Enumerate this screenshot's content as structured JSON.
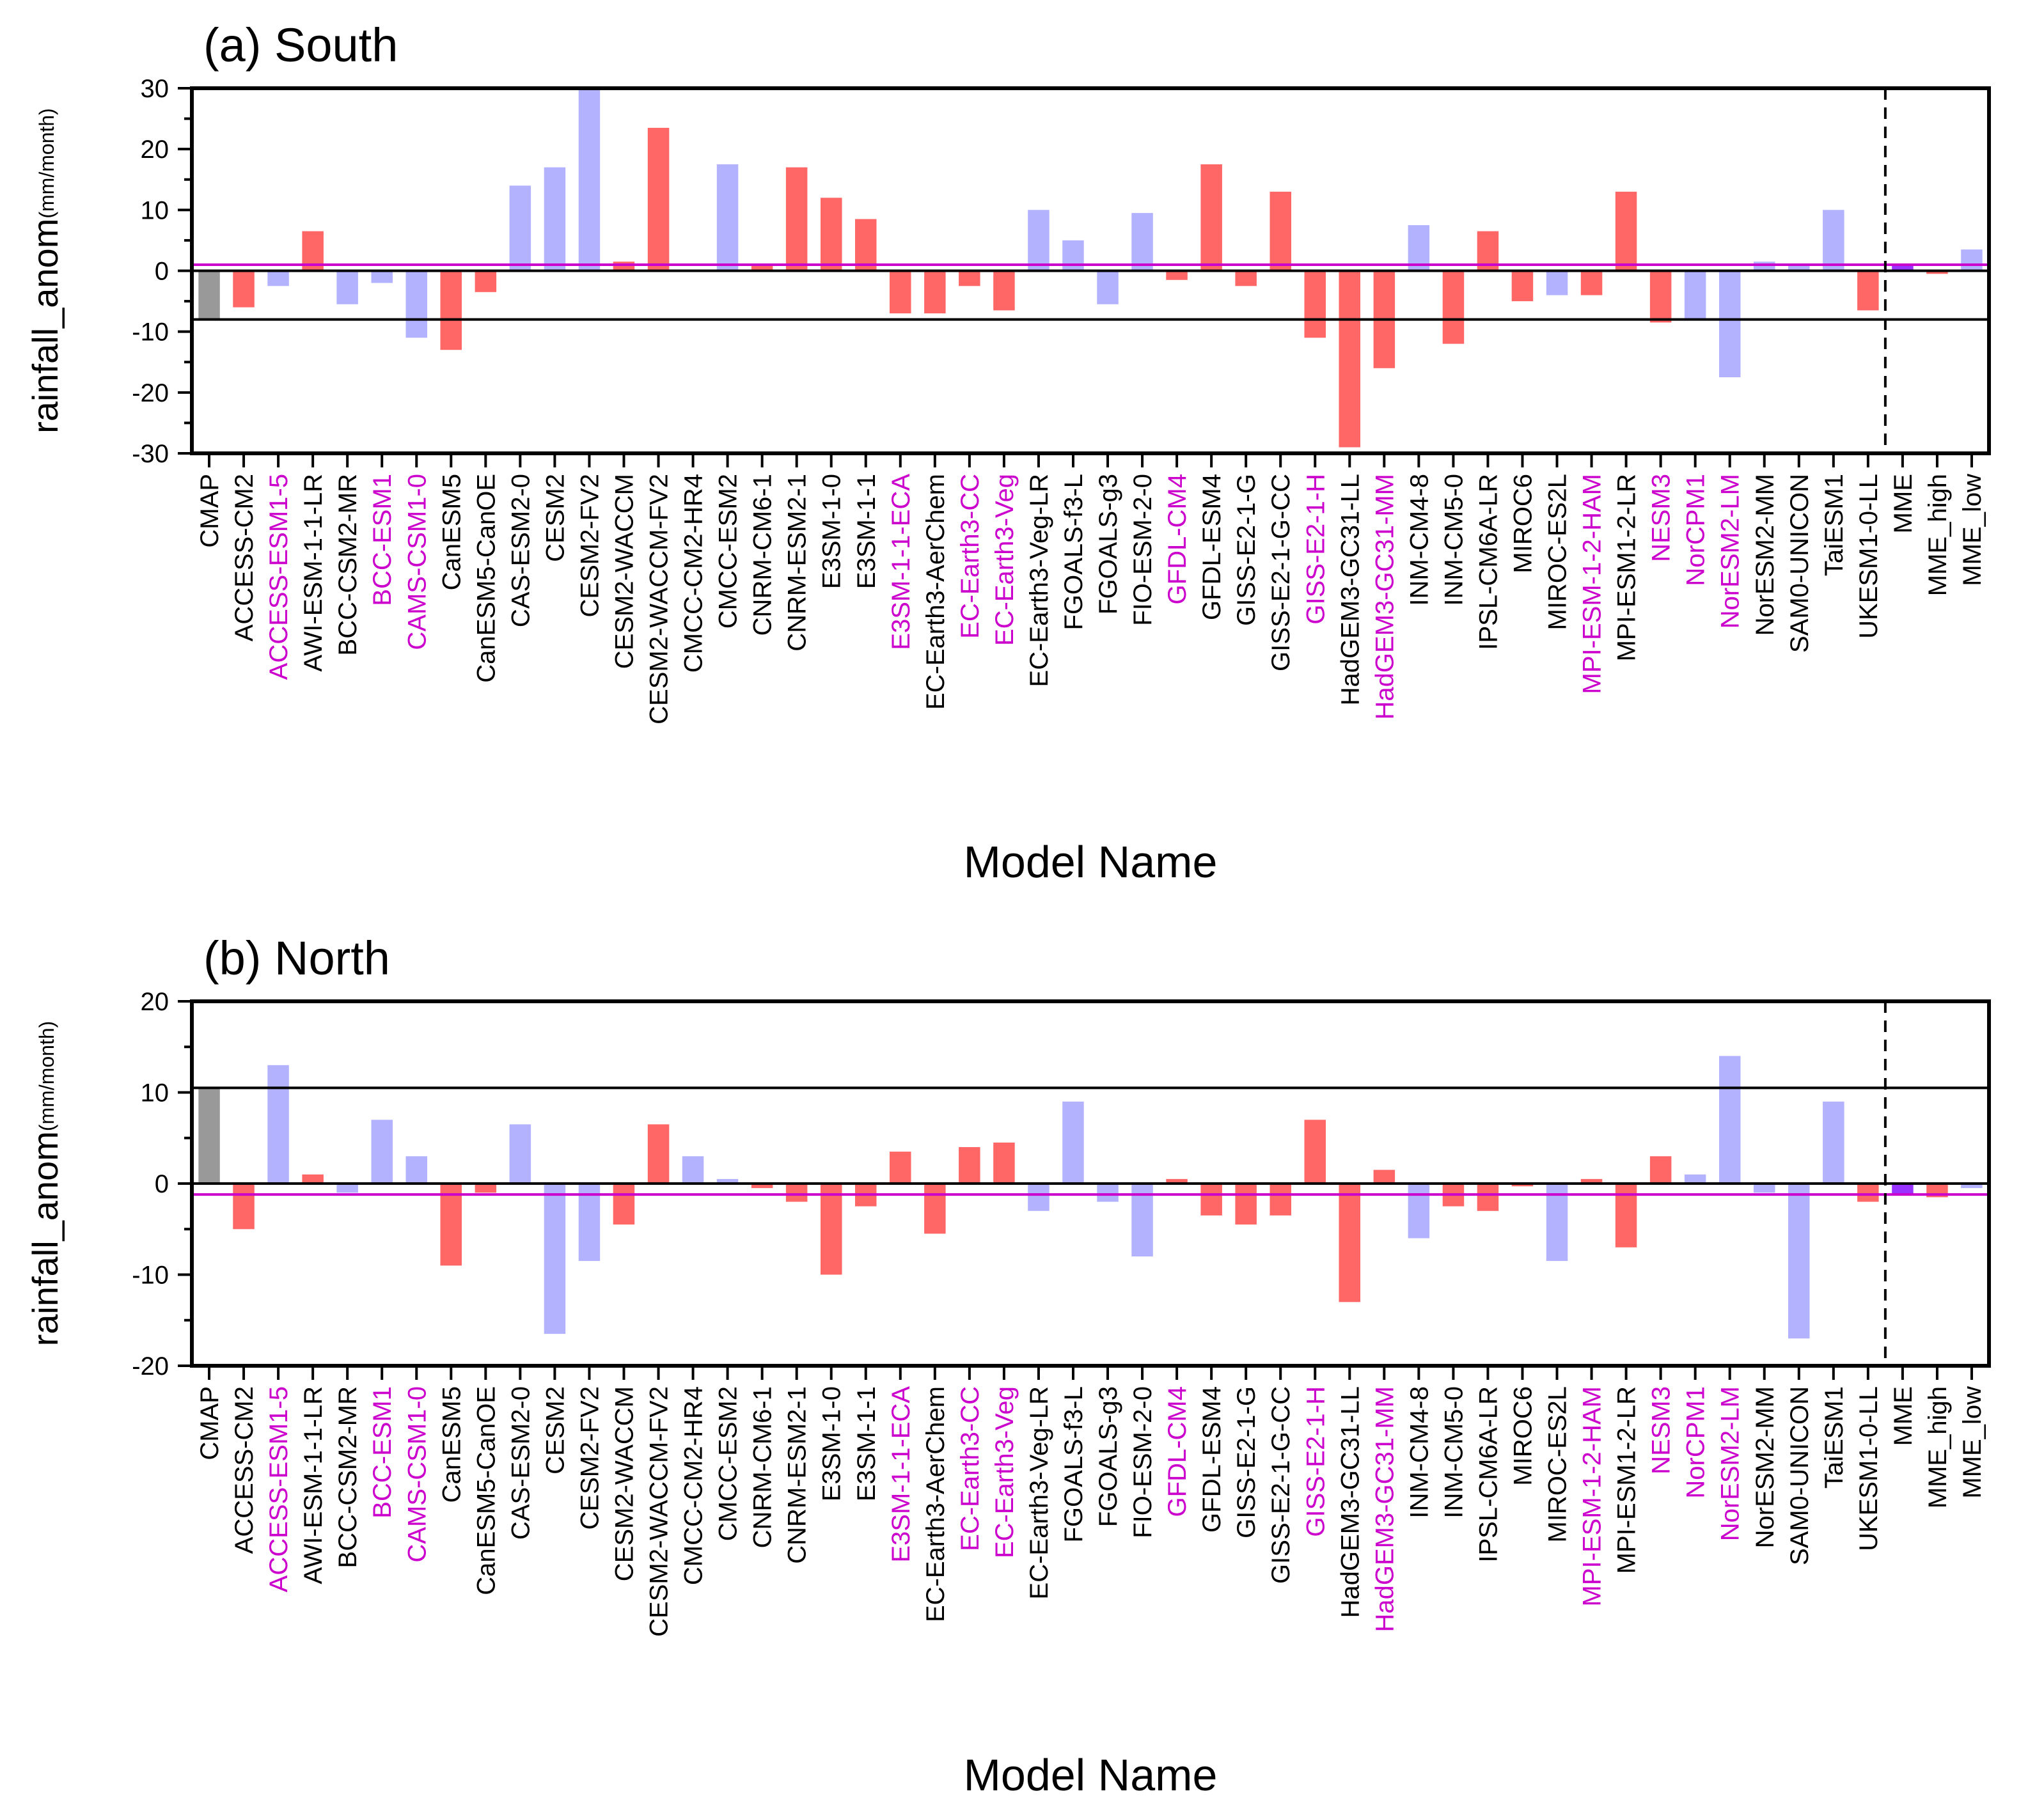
{
  "chart_data": [
    {
      "type": "bar",
      "title": "(a) South",
      "xlabel": "Model Name",
      "ylabel": "rainfall_anom",
      "ylabel_unit": "(mm/month)",
      "ylim": [
        -30,
        30
      ],
      "yticks": [
        -30,
        -20,
        -10,
        0,
        10,
        20,
        30
      ],
      "reference_lines": [
        {
          "value": 0,
          "color": "#000000"
        },
        {
          "value": -8,
          "color": "#000000"
        },
        {
          "value": 1,
          "color": "#cc00cc"
        }
      ],
      "separator_after": "UKESM1-0-LL",
      "categories": [
        "CMAP",
        "ACCESS-CM2",
        "ACCESS-ESM1-5",
        "AWI-ESM-1-1-LR",
        "BCC-CSM2-MR",
        "BCC-ESM1",
        "CAMS-CSM1-0",
        "CanESM5",
        "CanESM5-CanOE",
        "CAS-ESM2-0",
        "CESM2",
        "CESM2-FV2",
        "CESM2-WACCM",
        "CESM2-WACCM-FV2",
        "CMCC-CM2-HR4",
        "CMCC-ESM2",
        "CNRM-CM6-1",
        "CNRM-ESM2-1",
        "E3SM-1-0",
        "E3SM-1-1",
        "E3SM-1-1-ECA",
        "EC-Earth3-AerChem",
        "EC-Earth3-CC",
        "EC-Earth3-Veg",
        "EC-Earth3-Veg-LR",
        "FGOALS-f3-L",
        "FGOALS-g3",
        "FIO-ESM-2-0",
        "GFDL-CM4",
        "GFDL-ESM4",
        "GISS-E2-1-G",
        "GISS-E2-1-G-CC",
        "GISS-E2-1-H",
        "HadGEM3-GC31-LL",
        "HadGEM3-GC31-MM",
        "INM-CM4-8",
        "INM-CM5-0",
        "IPSL-CM6A-LR",
        "MIROC6",
        "MIROC-ES2L",
        "MPI-ESM-1-2-HAM",
        "MPI-ESM1-2-LR",
        "NESM3",
        "NorCPM1",
        "NorESM2-LM",
        "NorESM2-MM",
        "SAM0-UNICON",
        "TaiESM1",
        "UKESM1-0-LL",
        "MME",
        "MME_high",
        "MME_low"
      ],
      "values": [
        -8,
        -6,
        -2.5,
        6.5,
        -5.5,
        -2,
        -11,
        -13,
        -3.5,
        14,
        17,
        30,
        1.5,
        23.5,
        0,
        17.5,
        1,
        17,
        12,
        8.5,
        -7,
        -7,
        -2.5,
        -6.5,
        10,
        5,
        -5.5,
        9.5,
        -1.5,
        17.5,
        -2.5,
        13,
        -11,
        -29,
        -16,
        7.5,
        -12,
        6.5,
        -5,
        -4,
        -4,
        13,
        -8.5,
        -8,
        -17.5,
        1.5,
        1,
        10,
        -6.5,
        1,
        -0.5,
        3.5
      ],
      "bar_colors": [
        "#999999",
        "#ff6666",
        "#b2b2ff",
        "#ff6666",
        "#b2b2ff",
        "#b2b2ff",
        "#b2b2ff",
        "#ff6666",
        "#ff6666",
        "#b2b2ff",
        "#b2b2ff",
        "#b2b2ff",
        "#ff6666",
        "#ff6666",
        "#b2b2ff",
        "#b2b2ff",
        "#ff6666",
        "#ff6666",
        "#ff6666",
        "#ff6666",
        "#ff6666",
        "#ff6666",
        "#ff6666",
        "#ff6666",
        "#b2b2ff",
        "#b2b2ff",
        "#b2b2ff",
        "#b2b2ff",
        "#ff6666",
        "#ff6666",
        "#ff6666",
        "#ff6666",
        "#ff6666",
        "#ff6666",
        "#ff6666",
        "#b2b2ff",
        "#ff6666",
        "#ff6666",
        "#ff6666",
        "#b2b2ff",
        "#ff6666",
        "#ff6666",
        "#ff6666",
        "#b2b2ff",
        "#b2b2ff",
        "#b2b2ff",
        "#b2b2ff",
        "#b2b2ff",
        "#ff6666",
        "#9933ff",
        "#ff6666",
        "#b2b2ff"
      ],
      "label_colors": [
        "#000000",
        "#000000",
        "#cc00cc",
        "#000000",
        "#000000",
        "#cc00cc",
        "#cc00cc",
        "#000000",
        "#000000",
        "#000000",
        "#000000",
        "#000000",
        "#000000",
        "#000000",
        "#000000",
        "#000000",
        "#000000",
        "#000000",
        "#000000",
        "#000000",
        "#cc00cc",
        "#000000",
        "#cc00cc",
        "#cc00cc",
        "#000000",
        "#000000",
        "#000000",
        "#000000",
        "#cc00cc",
        "#000000",
        "#000000",
        "#000000",
        "#cc00cc",
        "#000000",
        "#cc00cc",
        "#000000",
        "#000000",
        "#000000",
        "#000000",
        "#000000",
        "#cc00cc",
        "#000000",
        "#cc00cc",
        "#cc00cc",
        "#cc00cc",
        "#000000",
        "#000000",
        "#000000",
        "#000000",
        "#000000",
        "#000000",
        "#000000"
      ]
    },
    {
      "type": "bar",
      "title": "(b) North",
      "xlabel": "Model Name",
      "ylabel": "rainfall_anom",
      "ylabel_unit": "(mm/month)",
      "ylim": [
        -20,
        20
      ],
      "yticks": [
        -20,
        -10,
        0,
        10,
        20
      ],
      "reference_lines": [
        {
          "value": 0,
          "color": "#000000"
        },
        {
          "value": 10.5,
          "color": "#000000"
        },
        {
          "value": -1.2,
          "color": "#cc00cc"
        }
      ],
      "separator_after": "UKESM1-0-LL",
      "categories": [
        "CMAP",
        "ACCESS-CM2",
        "ACCESS-ESM1-5",
        "AWI-ESM-1-1-LR",
        "BCC-CSM2-MR",
        "BCC-ESM1",
        "CAMS-CSM1-0",
        "CanESM5",
        "CanESM5-CanOE",
        "CAS-ESM2-0",
        "CESM2",
        "CESM2-FV2",
        "CESM2-WACCM",
        "CESM2-WACCM-FV2",
        "CMCC-CM2-HR4",
        "CMCC-ESM2",
        "CNRM-CM6-1",
        "CNRM-ESM2-1",
        "E3SM-1-0",
        "E3SM-1-1",
        "E3SM-1-1-ECA",
        "EC-Earth3-AerChem",
        "EC-Earth3-CC",
        "EC-Earth3-Veg",
        "EC-Earth3-Veg-LR",
        "FGOALS-f3-L",
        "FGOALS-g3",
        "FIO-ESM-2-0",
        "GFDL-CM4",
        "GFDL-ESM4",
        "GISS-E2-1-G",
        "GISS-E2-1-G-CC",
        "GISS-E2-1-H",
        "HadGEM3-GC31-LL",
        "HadGEM3-GC31-MM",
        "INM-CM4-8",
        "INM-CM5-0",
        "IPSL-CM6A-LR",
        "MIROC6",
        "MIROC-ES2L",
        "MPI-ESM-1-2-HAM",
        "MPI-ESM1-2-LR",
        "NESM3",
        "NorCPM1",
        "NorESM2-LM",
        "NorESM2-MM",
        "SAM0-UNICON",
        "TaiESM1",
        "UKESM1-0-LL",
        "MME",
        "MME_high",
        "MME_low"
      ],
      "values": [
        10.5,
        -5,
        13,
        1,
        -1,
        7,
        3,
        -9,
        -1,
        6.5,
        -16.5,
        -8.5,
        -4.5,
        6.5,
        3,
        0.5,
        -0.5,
        -2,
        -10,
        -2.5,
        3.5,
        -5.5,
        4,
        4.5,
        -3,
        9,
        -2,
        -8,
        0.5,
        -3.5,
        -4.5,
        -3.5,
        7,
        -13,
        1.5,
        -6,
        -2.5,
        -3,
        -0.3,
        -8.5,
        0.5,
        -7,
        3,
        1,
        14,
        -1,
        -17,
        9,
        -2,
        -1.2,
        -1.5,
        -0.5
      ],
      "bar_colors": [
        "#999999",
        "#ff6666",
        "#b2b2ff",
        "#ff6666",
        "#b2b2ff",
        "#b2b2ff",
        "#b2b2ff",
        "#ff6666",
        "#ff6666",
        "#b2b2ff",
        "#b2b2ff",
        "#b2b2ff",
        "#ff6666",
        "#ff6666",
        "#b2b2ff",
        "#b2b2ff",
        "#ff6666",
        "#ff6666",
        "#ff6666",
        "#ff6666",
        "#ff6666",
        "#ff6666",
        "#ff6666",
        "#ff6666",
        "#b2b2ff",
        "#b2b2ff",
        "#b2b2ff",
        "#b2b2ff",
        "#ff6666",
        "#ff6666",
        "#ff6666",
        "#ff6666",
        "#ff6666",
        "#ff6666",
        "#ff6666",
        "#b2b2ff",
        "#ff6666",
        "#ff6666",
        "#ff6666",
        "#b2b2ff",
        "#ff6666",
        "#ff6666",
        "#ff6666",
        "#b2b2ff",
        "#b2b2ff",
        "#b2b2ff",
        "#b2b2ff",
        "#b2b2ff",
        "#ff6666",
        "#9933ff",
        "#ff6666",
        "#b2b2ff"
      ],
      "label_colors": [
        "#000000",
        "#000000",
        "#cc00cc",
        "#000000",
        "#000000",
        "#cc00cc",
        "#cc00cc",
        "#000000",
        "#000000",
        "#000000",
        "#000000",
        "#000000",
        "#000000",
        "#000000",
        "#000000",
        "#000000",
        "#000000",
        "#000000",
        "#000000",
        "#000000",
        "#cc00cc",
        "#000000",
        "#cc00cc",
        "#cc00cc",
        "#000000",
        "#000000",
        "#000000",
        "#000000",
        "#cc00cc",
        "#000000",
        "#000000",
        "#000000",
        "#cc00cc",
        "#000000",
        "#cc00cc",
        "#000000",
        "#000000",
        "#000000",
        "#000000",
        "#000000",
        "#cc00cc",
        "#000000",
        "#cc00cc",
        "#cc00cc",
        "#cc00cc",
        "#000000",
        "#000000",
        "#000000",
        "#000000",
        "#000000",
        "#000000",
        "#000000"
      ]
    }
  ]
}
